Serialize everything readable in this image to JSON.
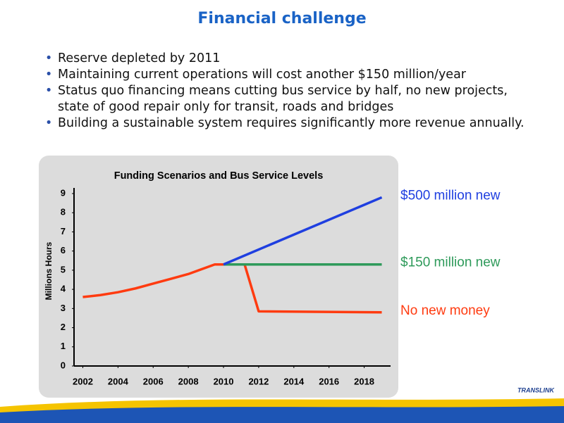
{
  "title": "Financial challenge",
  "bullets": [
    "Reserve depleted by 2011",
    "Maintaining current operations will cost another $150 million/year",
    "Status quo financing means cutting bus service by half, no new projects, state of good repair only for transit, roads and bridges",
    "Building a sustainable system requires significantly more revenue annually."
  ],
  "chart_data": {
    "type": "line",
    "title": "Funding Scenarios and Bus Service Levels",
    "y_label": "Millions Hours",
    "xlim": [
      2001.5,
      2019.5
    ],
    "xticks": [
      2002,
      2004,
      2006,
      2008,
      2010,
      2012,
      2014,
      2016,
      2018
    ],
    "ylim": [
      0,
      9
    ],
    "yticks": [
      0,
      1,
      2,
      3,
      4,
      5,
      6,
      7,
      8,
      9
    ],
    "series": [
      {
        "name": "$500 million new",
        "color": "#1f3fe0",
        "x": [
          2010,
          2019
        ],
        "values": [
          5.3,
          8.8
        ]
      },
      {
        "name": "$150 million new",
        "color": "#2e9a5a",
        "x": [
          2010,
          2019
        ],
        "values": [
          5.3,
          5.3
        ]
      },
      {
        "name": "No new money",
        "color": "#ff3b10",
        "x": [
          2002,
          2003,
          2004,
          2005,
          2006,
          2007,
          2008,
          2009.5,
          2011.2,
          2012,
          2019
        ],
        "values": [
          3.6,
          3.7,
          3.85,
          4.05,
          4.3,
          4.55,
          4.8,
          5.3,
          5.3,
          2.85,
          2.8
        ]
      }
    ]
  },
  "footer": {
    "logo": "TRANSLINK"
  }
}
